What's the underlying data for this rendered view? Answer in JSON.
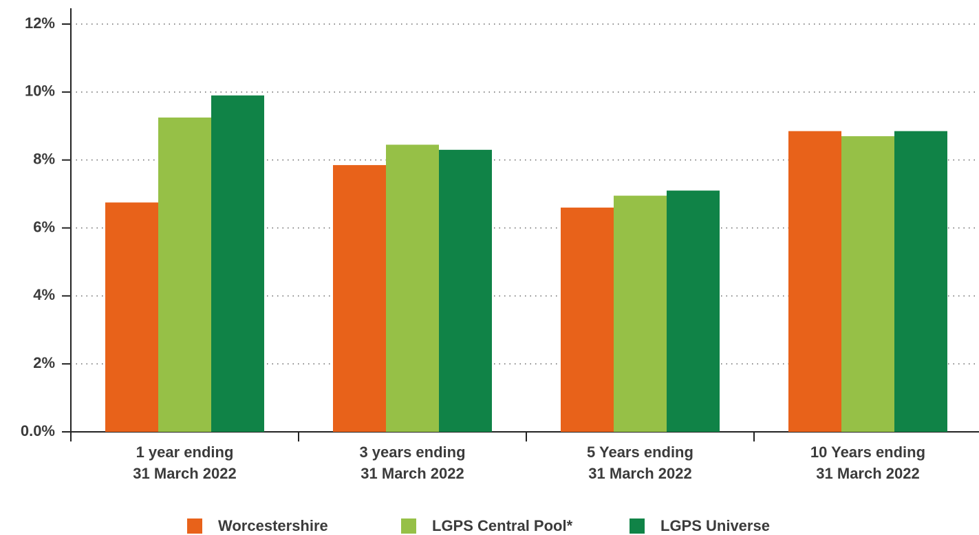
{
  "chart_data": {
    "type": "bar",
    "categories": [
      "1 year ending\n31 March 2022",
      "3 years ending\n31 March 2022",
      "5 Years ending\n31 March 2022",
      "10 Years ending\n31 March 2022"
    ],
    "series": [
      {
        "name": "Worcestershire",
        "color": "#e8621a",
        "values": [
          6.75,
          7.85,
          6.6,
          8.85
        ]
      },
      {
        "name": "LGPS Central Pool*",
        "color": "#96c047",
        "values": [
          9.25,
          8.45,
          6.95,
          8.7
        ]
      },
      {
        "name": "LGPS Universe",
        "color": "#108347",
        "values": [
          9.9,
          8.3,
          7.1,
          8.85
        ]
      }
    ],
    "ylim": [
      0,
      12
    ],
    "yticks": [
      {
        "value": 0,
        "label": "0.0%"
      },
      {
        "value": 2,
        "label": "2%"
      },
      {
        "value": 4,
        "label": "4%"
      },
      {
        "value": 6,
        "label": "6%"
      },
      {
        "value": 8,
        "label": "8%"
      },
      {
        "value": 10,
        "label": "10%"
      },
      {
        "value": 12,
        "label": "12%"
      }
    ],
    "grid": true,
    "legend": "bottom"
  }
}
